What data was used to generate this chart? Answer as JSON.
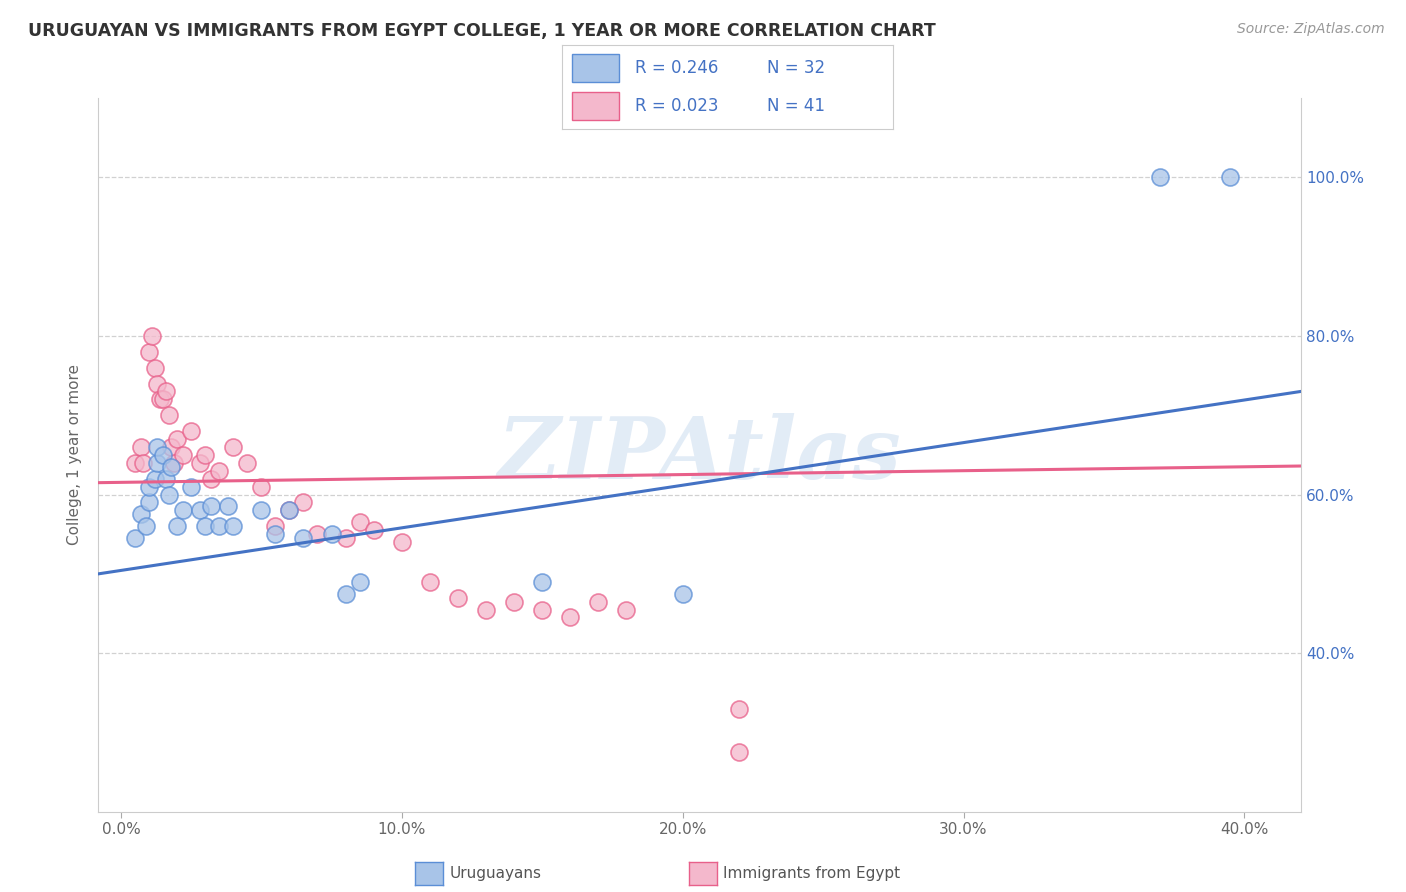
{
  "title": "URUGUAYAN VS IMMIGRANTS FROM EGYPT COLLEGE, 1 YEAR OR MORE CORRELATION CHART",
  "source": "Source: ZipAtlas.com",
  "ylabel": "College, 1 year or more",
  "xlabel_tick_vals": [
    0.0,
    0.1,
    0.2,
    0.3,
    0.4
  ],
  "xlabel_tick_labels": [
    "0.0%",
    "10.0%",
    "20.0%",
    "30.0%",
    "40.0%"
  ],
  "ylabel_tick_vals": [
    0.4,
    0.6,
    0.8,
    1.0
  ],
  "ylabel_tick_labels": [
    "40.0%",
    "60.0%",
    "80.0%",
    "100.0%"
  ],
  "xlim": [
    -0.008,
    0.42
  ],
  "ylim": [
    0.2,
    1.1
  ],
  "watermark": "ZIPAtlas",
  "blue_R": "0.246",
  "blue_N": "32",
  "pink_R": "0.023",
  "pink_N": "41",
  "blue_scatter": [
    [
      0.005,
      0.545
    ],
    [
      0.007,
      0.575
    ],
    [
      0.009,
      0.56
    ],
    [
      0.01,
      0.59
    ],
    [
      0.01,
      0.61
    ],
    [
      0.012,
      0.62
    ],
    [
      0.013,
      0.64
    ],
    [
      0.013,
      0.66
    ],
    [
      0.015,
      0.65
    ],
    [
      0.016,
      0.62
    ],
    [
      0.017,
      0.6
    ],
    [
      0.018,
      0.635
    ],
    [
      0.02,
      0.56
    ],
    [
      0.022,
      0.58
    ],
    [
      0.025,
      0.61
    ],
    [
      0.028,
      0.58
    ],
    [
      0.03,
      0.56
    ],
    [
      0.032,
      0.585
    ],
    [
      0.035,
      0.56
    ],
    [
      0.038,
      0.585
    ],
    [
      0.04,
      0.56
    ],
    [
      0.05,
      0.58
    ],
    [
      0.055,
      0.55
    ],
    [
      0.06,
      0.58
    ],
    [
      0.065,
      0.545
    ],
    [
      0.075,
      0.55
    ],
    [
      0.08,
      0.475
    ],
    [
      0.085,
      0.49
    ],
    [
      0.15,
      0.49
    ],
    [
      0.2,
      0.475
    ],
    [
      0.37,
      1.0
    ],
    [
      0.395,
      1.0
    ]
  ],
  "pink_scatter": [
    [
      0.005,
      0.64
    ],
    [
      0.007,
      0.66
    ],
    [
      0.008,
      0.64
    ],
    [
      0.01,
      0.78
    ],
    [
      0.011,
      0.8
    ],
    [
      0.012,
      0.76
    ],
    [
      0.013,
      0.74
    ],
    [
      0.014,
      0.72
    ],
    [
      0.015,
      0.72
    ],
    [
      0.016,
      0.73
    ],
    [
      0.017,
      0.7
    ],
    [
      0.018,
      0.66
    ],
    [
      0.019,
      0.64
    ],
    [
      0.02,
      0.67
    ],
    [
      0.022,
      0.65
    ],
    [
      0.025,
      0.68
    ],
    [
      0.028,
      0.64
    ],
    [
      0.03,
      0.65
    ],
    [
      0.032,
      0.62
    ],
    [
      0.035,
      0.63
    ],
    [
      0.04,
      0.66
    ],
    [
      0.045,
      0.64
    ],
    [
      0.05,
      0.61
    ],
    [
      0.055,
      0.56
    ],
    [
      0.06,
      0.58
    ],
    [
      0.065,
      0.59
    ],
    [
      0.07,
      0.55
    ],
    [
      0.08,
      0.545
    ],
    [
      0.085,
      0.565
    ],
    [
      0.09,
      0.555
    ],
    [
      0.1,
      0.54
    ],
    [
      0.11,
      0.49
    ],
    [
      0.12,
      0.47
    ],
    [
      0.13,
      0.455
    ],
    [
      0.14,
      0.465
    ],
    [
      0.15,
      0.455
    ],
    [
      0.16,
      0.445
    ],
    [
      0.17,
      0.465
    ],
    [
      0.18,
      0.455
    ],
    [
      0.22,
      0.33
    ],
    [
      0.22,
      0.275
    ]
  ],
  "blue_line_x": [
    -0.008,
    0.42
  ],
  "blue_line_y": [
    0.5,
    0.73
  ],
  "pink_line_x": [
    -0.008,
    0.42
  ],
  "pink_line_y": [
    0.615,
    0.636
  ],
  "blue_line_color": "#4472c4",
  "pink_line_color": "#e8608a",
  "blue_marker_face": "#a8c4e8",
  "blue_marker_edge": "#5b8ed6",
  "pink_marker_face": "#f4b8cc",
  "pink_marker_edge": "#e8608a",
  "grid_color": "#cccccc",
  "right_tick_color": "#4472c4",
  "tick_label_color": "#666666",
  "background_color": "#ffffff"
}
